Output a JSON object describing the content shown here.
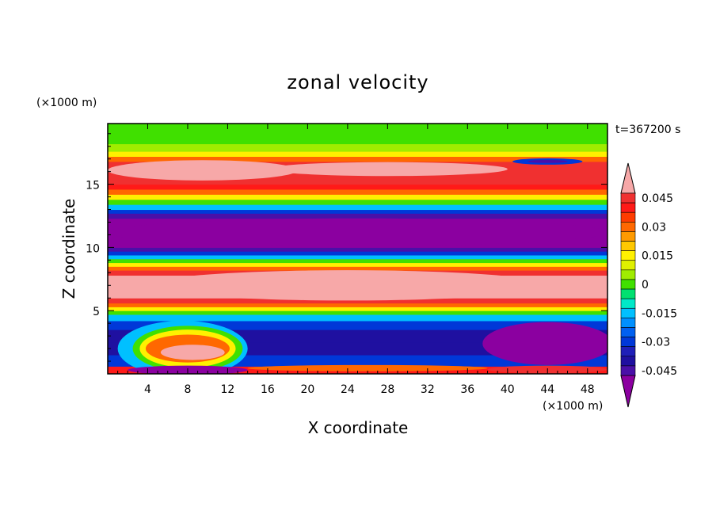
{
  "chart_data": {
    "type": "heatmap",
    "title": "zonal velocity",
    "xlabel": "X coordinate",
    "ylabel": "Z coordinate",
    "x_unit": "(×1000 m)",
    "y_unit": "(×1000 m)",
    "time_label": "t=367200 s",
    "xlim": [
      0,
      50
    ],
    "ylim": [
      0,
      19.8
    ],
    "x_ticks": [
      4,
      8,
      12,
      16,
      20,
      24,
      28,
      32,
      36,
      40,
      44,
      48
    ],
    "y_ticks": [
      5,
      10,
      15
    ],
    "colorbar": {
      "levels": [
        -0.05,
        -0.045,
        -0.04,
        -0.035,
        -0.03,
        -0.025,
        -0.02,
        -0.015,
        -0.01,
        -0.005,
        0,
        0.005,
        0.01,
        0.015,
        0.02,
        0.025,
        0.03,
        0.035,
        0.04,
        0.045,
        0.05
      ],
      "colors": [
        "#8b00a0",
        "#4a10a8",
        "#1f10a0",
        "#1f1fb8",
        "#0038d8",
        "#0060f0",
        "#0090ff",
        "#00c0ff",
        "#00e8c8",
        "#00e070",
        "#40e000",
        "#a0ec00",
        "#e0f000",
        "#fff000",
        "#ffc800",
        "#ff9a00",
        "#ff6800",
        "#ff3c00",
        "#ff1a18",
        "#f03030",
        "#f7a8a8"
      ],
      "tick_labels": [
        "0.045",
        "0.03",
        "0.015",
        "0",
        "-0.015",
        "-0.03",
        "-0.045"
      ],
      "tick_values": [
        0.045,
        0.03,
        0.015,
        0,
        -0.015,
        -0.03,
        -0.045
      ],
      "extend": "both"
    },
    "bands": [
      {
        "z": [
          0.0,
          0.6
        ],
        "u": 0.04
      },
      {
        "z": [
          0.6,
          1.5
        ],
        "u": -0.03
      },
      {
        "z": [
          1.5,
          2.5
        ],
        "u": -0.04
      },
      {
        "z": [
          2.5,
          3.5
        ],
        "u": -0.042
      },
      {
        "z": [
          3.5,
          4.2
        ],
        "u": -0.03
      },
      {
        "z": [
          4.2,
          4.7
        ],
        "u": -0.015
      },
      {
        "z": [
          4.7,
          5.0
        ],
        "u": 0.0
      },
      {
        "z": [
          5.0,
          5.3
        ],
        "u": 0.015
      },
      {
        "z": [
          5.3,
          5.6
        ],
        "u": 0.03
      },
      {
        "z": [
          5.6,
          6.0
        ],
        "u": 0.045
      },
      {
        "z": [
          6.0,
          7.8
        ],
        "u": 0.05
      },
      {
        "z": [
          7.8,
          8.2
        ],
        "u": 0.045
      },
      {
        "z": [
          8.2,
          8.5
        ],
        "u": 0.03
      },
      {
        "z": [
          8.5,
          8.8
        ],
        "u": 0.015
      },
      {
        "z": [
          8.8,
          9.1
        ],
        "u": 0.0
      },
      {
        "z": [
          9.1,
          9.4
        ],
        "u": -0.015
      },
      {
        "z": [
          9.4,
          9.7
        ],
        "u": -0.03
      },
      {
        "z": [
          9.7,
          10.0
        ],
        "u": -0.045
      },
      {
        "z": [
          10.0,
          12.3
        ],
        "u": -0.05
      },
      {
        "z": [
          12.3,
          12.7
        ],
        "u": -0.045
      },
      {
        "z": [
          12.7,
          13.0
        ],
        "u": -0.03
      },
      {
        "z": [
          13.0,
          13.4
        ],
        "u": -0.015
      },
      {
        "z": [
          13.4,
          13.8
        ],
        "u": 0.0
      },
      {
        "z": [
          13.8,
          14.2
        ],
        "u": 0.015
      },
      {
        "z": [
          14.2,
          14.6
        ],
        "u": 0.03
      },
      {
        "z": [
          14.6,
          15.0
        ],
        "u": 0.04
      },
      {
        "z": [
          15.0,
          16.8
        ],
        "u": 0.045
      },
      {
        "z": [
          16.8,
          17.2
        ],
        "u": 0.03
      },
      {
        "z": [
          17.2,
          17.6
        ],
        "u": 0.015
      },
      {
        "z": [
          17.6,
          18.2
        ],
        "u": 0.005
      },
      {
        "z": [
          18.2,
          19.8
        ],
        "u": 0.0
      }
    ],
    "features": [
      {
        "kind": "blob",
        "cx": 9.5,
        "cz": 16.1,
        "rx": 9.5,
        "rz": 0.8,
        "u": 0.05
      },
      {
        "kind": "blob",
        "cx": 28,
        "cz": 16.2,
        "rx": 12,
        "rz": 0.55,
        "u": 0.05
      },
      {
        "kind": "blob",
        "cx": 44,
        "cz": 16.8,
        "rx": 3.5,
        "rz": 0.25,
        "u": -0.03
      },
      {
        "kind": "blob",
        "cx": 44,
        "cz": 16.8,
        "rx": 2.0,
        "rz": 0.12,
        "u": -0.045
      },
      {
        "kind": "blob",
        "cx": 24,
        "cz": 7.0,
        "rx": 20,
        "rz": 1.2,
        "u": 0.05
      },
      {
        "kind": "blob",
        "cx": 25,
        "cz": 11.2,
        "rx": 25,
        "rz": 1.1,
        "u": -0.05
      },
      {
        "kind": "blob",
        "cx": 7.5,
        "cz": 2.0,
        "rx": 6.5,
        "rz": 2.2,
        "u": -0.015
      },
      {
        "kind": "blob",
        "cx": 8,
        "cz": 2.0,
        "rx": 5.5,
        "rz": 1.8,
        "u": 0.0
      },
      {
        "kind": "blob",
        "cx": 8,
        "cz": 2.0,
        "rx": 4.8,
        "rz": 1.5,
        "u": 0.015
      },
      {
        "kind": "blob",
        "cx": 8,
        "cz": 2.0,
        "rx": 4.2,
        "rz": 1.1,
        "u": 0.03
      },
      {
        "kind": "blob",
        "cx": 8.5,
        "cz": 1.7,
        "rx": 3.2,
        "rz": 0.6,
        "u": 0.05
      },
      {
        "kind": "blob",
        "cx": 44,
        "cz": 2.4,
        "rx": 6.5,
        "rz": 1.7,
        "u": -0.05
      },
      {
        "kind": "blob",
        "cx": 8,
        "cz": 0.3,
        "rx": 6.0,
        "rz": 0.35,
        "u": -0.05
      },
      {
        "kind": "blob",
        "cx": 26,
        "cz": 0.45,
        "rx": 12.0,
        "rz": 0.25,
        "u": 0.03
      },
      {
        "kind": "blob",
        "cx": 44,
        "cz": 0.35,
        "rx": 6.0,
        "rz": 0.3,
        "u": 0.045
      }
    ]
  }
}
